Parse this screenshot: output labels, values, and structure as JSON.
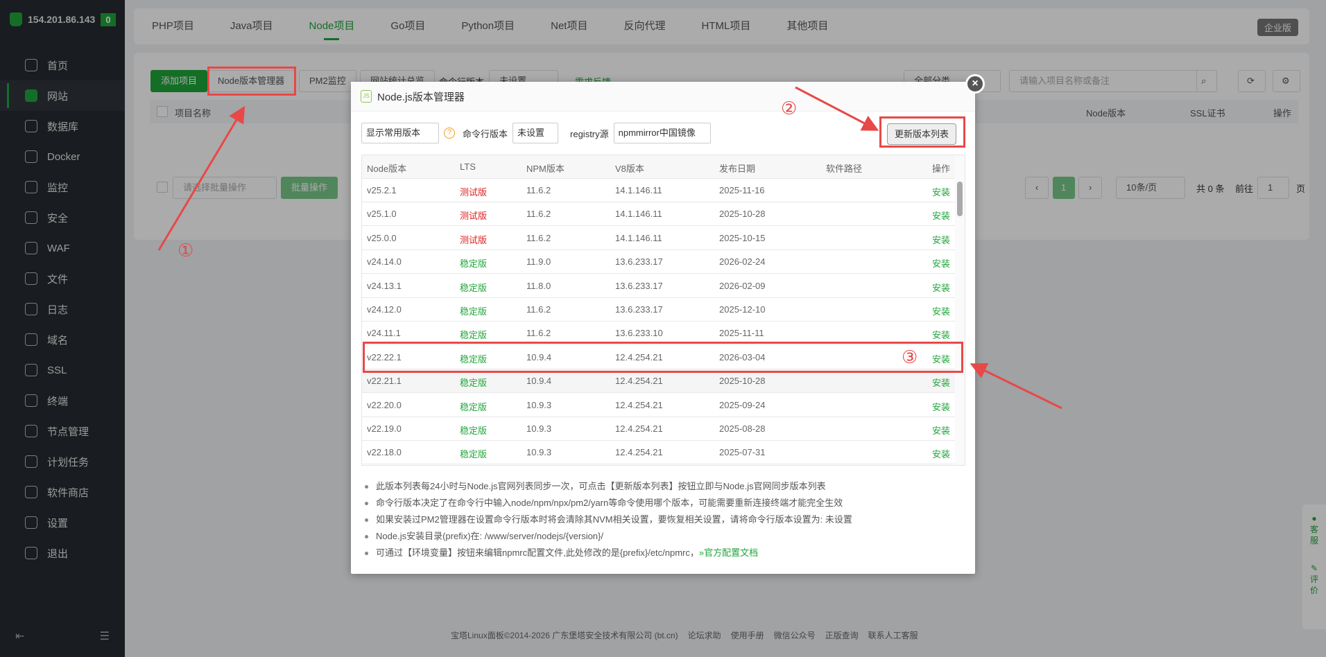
{
  "sidebar": {
    "server_ip": "154.201.86.143",
    "alert_count": "0",
    "items": [
      {
        "label": "首页",
        "icon": "home-icon"
      },
      {
        "label": "网站",
        "icon": "website-icon",
        "active": true
      },
      {
        "label": "数据库",
        "icon": "database-icon"
      },
      {
        "label": "Docker",
        "icon": "docker-icon"
      },
      {
        "label": "监控",
        "icon": "monitor-icon"
      },
      {
        "label": "安全",
        "icon": "shield-icon"
      },
      {
        "label": "WAF",
        "icon": "waf-icon"
      },
      {
        "label": "文件",
        "icon": "folder-icon"
      },
      {
        "label": "日志",
        "icon": "log-icon"
      },
      {
        "label": "域名",
        "icon": "globe-icon"
      },
      {
        "label": "SSL",
        "icon": "ssl-icon"
      },
      {
        "label": "终端",
        "icon": "terminal-icon"
      },
      {
        "label": "节点管理",
        "icon": "node-icon"
      },
      {
        "label": "计划任务",
        "icon": "calendar-icon"
      },
      {
        "label": "软件商店",
        "icon": "apps-icon"
      },
      {
        "label": "设置",
        "icon": "gear-icon"
      },
      {
        "label": "退出",
        "icon": "logout-icon"
      }
    ]
  },
  "tabs": [
    {
      "label": "PHP项目"
    },
    {
      "label": "Java项目"
    },
    {
      "label": "Node项目",
      "active": true
    },
    {
      "label": "Go项目"
    },
    {
      "label": "Python项目"
    },
    {
      "label": "Net项目"
    },
    {
      "label": "反向代理"
    },
    {
      "label": "HTML项目"
    },
    {
      "label": "其他项目"
    }
  ],
  "enterprise_label": "企业版",
  "toolbar": {
    "add": "添加项目",
    "node_manager": "Node版本管理器",
    "pm2": "PM2监控",
    "stats": "网站统计总览",
    "cli_label": "命令行版本",
    "cli_value": "未设置",
    "feedback": "需求反馈",
    "category": "全部分类",
    "search_placeholder": "请输入项目名称或备注"
  },
  "list_header": {
    "name": "项目名称",
    "node": "Node版本",
    "ssl": "SSL证书",
    "op": "操作"
  },
  "batch": {
    "placeholder": "请选择批量操作",
    "button": "批量操作"
  },
  "pagination": {
    "page": "1",
    "per_page": "10条/页",
    "total": "共 0 条",
    "goto": "前往",
    "goto_value": "1",
    "page_suffix": "页"
  },
  "modal": {
    "title": "Node.js版本管理器",
    "filter": "显示常用版本",
    "cli_label": "命令行版本",
    "cli_value": "未设置",
    "registry_label": "registry源",
    "registry_value": "npmmirror中国镜像",
    "update_button": "更新版本列表",
    "columns": [
      "Node版本",
      "LTS",
      "NPM版本",
      "V8版本",
      "发布日期",
      "软件路径",
      "操作"
    ],
    "rows": [
      [
        "v25.2.1",
        "测试版",
        "11.6.2",
        "14.1.146.11",
        "2025-11-16",
        "",
        "安装"
      ],
      [
        "v25.1.0",
        "测试版",
        "11.6.2",
        "14.1.146.11",
        "2025-10-28",
        "",
        "安装"
      ],
      [
        "v25.0.0",
        "测试版",
        "11.6.2",
        "14.1.146.11",
        "2025-10-15",
        "",
        "安装"
      ],
      [
        "v24.14.0",
        "稳定版",
        "11.9.0",
        "13.6.233.17",
        "2026-02-24",
        "",
        "安装"
      ],
      [
        "v24.13.1",
        "稳定版",
        "11.8.0",
        "13.6.233.17",
        "2026-02-09",
        "",
        "安装"
      ],
      [
        "v24.12.0",
        "稳定版",
        "11.6.2",
        "13.6.233.17",
        "2025-12-10",
        "",
        "安装"
      ],
      [
        "v24.11.1",
        "稳定版",
        "11.6.2",
        "13.6.233.10",
        "2025-11-11",
        "",
        "安装"
      ],
      [
        "v22.22.1",
        "稳定版",
        "10.9.4",
        "12.4.254.21",
        "2026-03-04",
        "",
        "安装"
      ],
      [
        "v22.21.1",
        "稳定版",
        "10.9.4",
        "12.4.254.21",
        "2025-10-28",
        "",
        "安装"
      ],
      [
        "v22.20.0",
        "稳定版",
        "10.9.3",
        "12.4.254.21",
        "2025-09-24",
        "",
        "安装"
      ],
      [
        "v22.19.0",
        "稳定版",
        "10.9.3",
        "12.4.254.21",
        "2025-08-28",
        "",
        "安装"
      ],
      [
        "v22.18.0",
        "稳定版",
        "10.9.3",
        "12.4.254.21",
        "2025-07-31",
        "",
        "安装"
      ]
    ],
    "notes": [
      "此版本列表每24小时与Node.js官网列表同步一次，可点击【更新版本列表】按钮立即与Node.js官网同步版本列表",
      "命令行版本决定了在命令行中输入node/npm/npx/pm2/yarn等命令使用哪个版本，可能需要重新连接终端才能完全生效",
      "如果安装过PM2管理器在设置命令行版本时将会清除其NVM相关设置，要恢复相关设置，请将命令行版本设置为: 未设置",
      "Node.js安装目录(prefix)在: /www/server/nodejs/{version}/",
      "可通过【环境变量】按钮来编辑npmrc配置文件,此处修改的是{prefix}/etc/npmrc，"
    ],
    "doc_link": "»官方配置文档"
  },
  "annotations": [
    "①",
    "②",
    "③"
  ],
  "footer": {
    "copyright": "宝塔Linux面板©2014-2026 广东堡塔安全技术有限公司 (bt.cn)",
    "links": [
      "论坛求助",
      "使用手册",
      "微信公众号",
      "正版查询",
      "联系人工客服"
    ]
  },
  "float": {
    "service": "客服",
    "review": "评价"
  },
  "colors": {
    "accent": "#20a53a",
    "annotation": "#e84848",
    "test": "#e02020"
  }
}
